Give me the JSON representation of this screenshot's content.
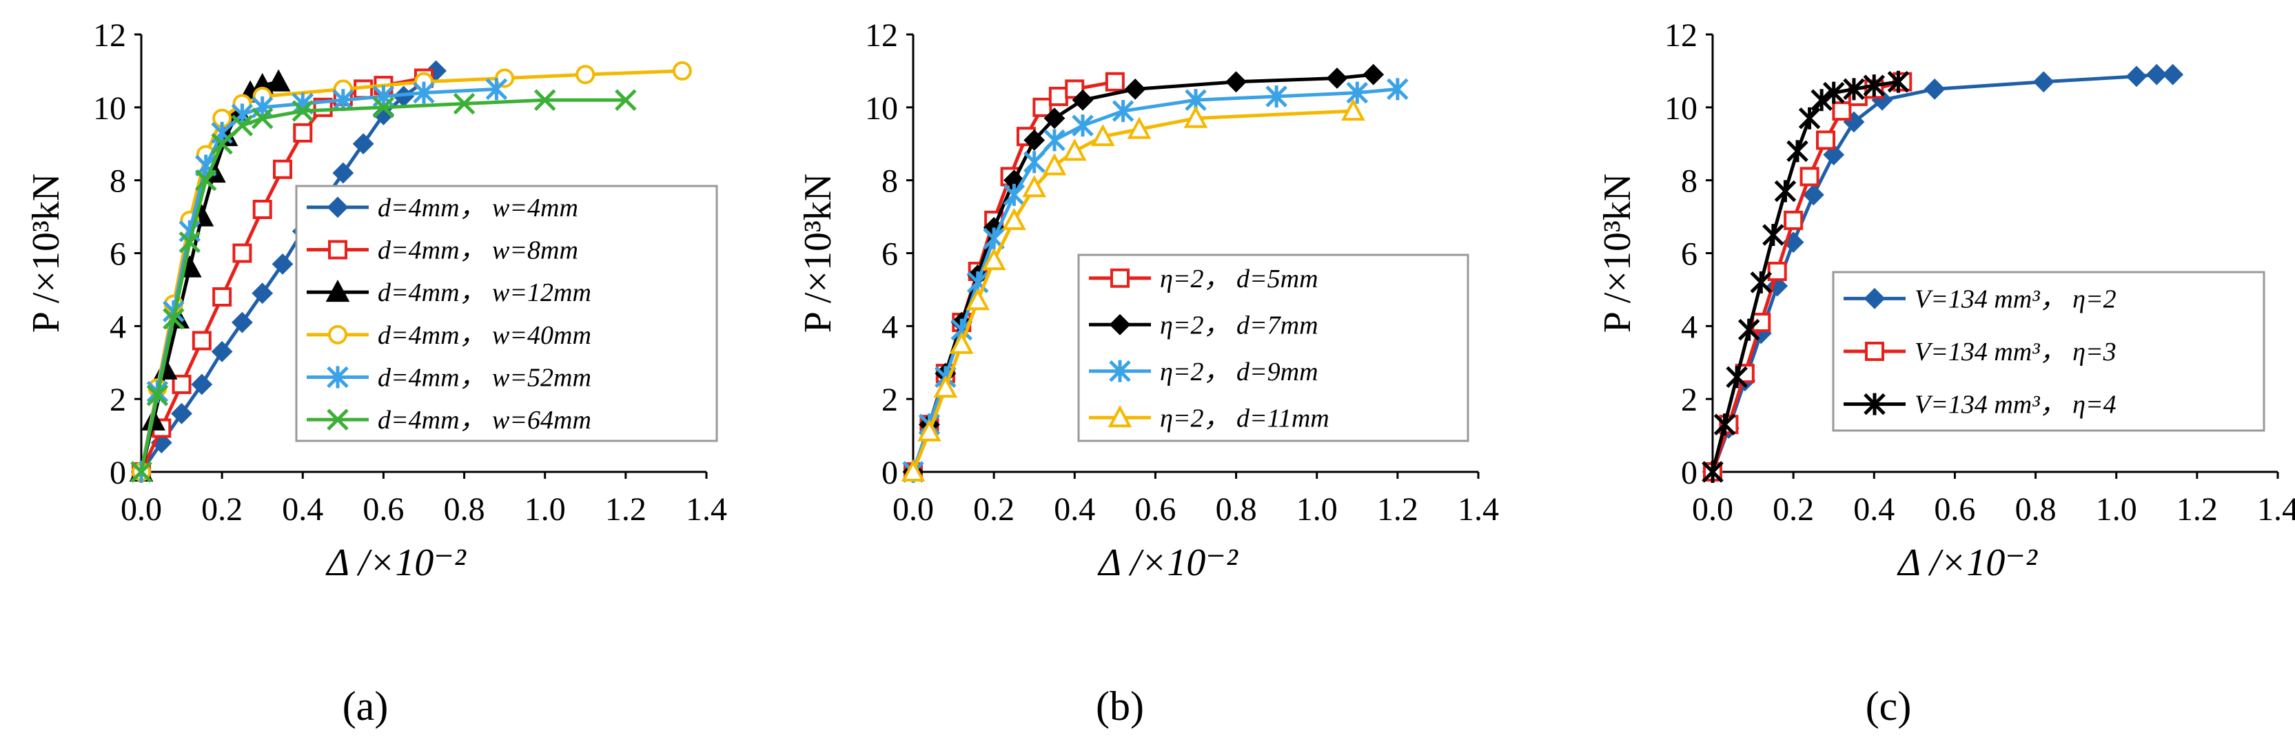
{
  "figure": {
    "panel_captions": [
      "(a)",
      "(b)",
      "(c)"
    ]
  },
  "chart_data": [
    {
      "type": "line",
      "caption": "(a)",
      "ylabel": "P /×10³kN",
      "xlabel": "Δ /×10⁻²",
      "xlim": [
        0,
        1.4
      ],
      "ylim": [
        0,
        12
      ],
      "xticks": [
        "0.0",
        "0.2",
        "0.4",
        "0.6",
        "0.8",
        "1.0",
        "1.2",
        "1.4"
      ],
      "yticks": [
        "0",
        "2",
        "4",
        "6",
        "8",
        "10",
        "12"
      ],
      "grid": false,
      "legend_position": "center-right",
      "series": [
        {
          "name": "d=4mm，  w=4mm",
          "color": "#1f5fa8",
          "marker": "diamond",
          "x": [
            0.0,
            0.05,
            0.1,
            0.15,
            0.2,
            0.25,
            0.3,
            0.35,
            0.4,
            0.45,
            0.5,
            0.55,
            0.6,
            0.65,
            0.7,
            0.73
          ],
          "y": [
            0.0,
            0.8,
            1.6,
            2.4,
            3.3,
            4.1,
            4.9,
            5.7,
            6.6,
            7.4,
            8.2,
            9.0,
            9.8,
            10.3,
            10.7,
            11.0
          ]
        },
        {
          "name": "d=4mm，  w=8mm",
          "color": "#e8201a",
          "marker": "square",
          "x": [
            0.0,
            0.05,
            0.1,
            0.15,
            0.2,
            0.25,
            0.3,
            0.35,
            0.4,
            0.45,
            0.5,
            0.55,
            0.6,
            0.7
          ],
          "y": [
            0.0,
            1.2,
            2.4,
            3.6,
            4.8,
            6.0,
            7.2,
            8.3,
            9.3,
            10.0,
            10.3,
            10.5,
            10.6,
            10.8
          ]
        },
        {
          "name": "d=4mm，  w=12mm",
          "color": "#000000",
          "marker": "triangle",
          "x": [
            0.0,
            0.03,
            0.06,
            0.09,
            0.12,
            0.15,
            0.18,
            0.21,
            0.24,
            0.27,
            0.3,
            0.34
          ],
          "y": [
            0.0,
            1.4,
            2.8,
            4.2,
            5.6,
            7.0,
            8.2,
            9.2,
            9.9,
            10.4,
            10.6,
            10.7
          ]
        },
        {
          "name": "d=4mm，  w=40mm",
          "color": "#f5b800",
          "marker": "circle",
          "x": [
            0.0,
            0.04,
            0.08,
            0.12,
            0.16,
            0.2,
            0.25,
            0.3,
            0.5,
            0.7,
            0.9,
            1.1,
            1.34
          ],
          "y": [
            0.0,
            2.3,
            4.6,
            6.9,
            8.7,
            9.7,
            10.1,
            10.3,
            10.5,
            10.7,
            10.8,
            10.9,
            11.0
          ]
        },
        {
          "name": "d=4mm，  w=52mm",
          "color": "#3aa2e6",
          "marker": "asterisk",
          "x": [
            0.0,
            0.04,
            0.08,
            0.12,
            0.16,
            0.2,
            0.25,
            0.3,
            0.4,
            0.5,
            0.6,
            0.7,
            0.88
          ],
          "y": [
            0.0,
            2.2,
            4.4,
            6.6,
            8.4,
            9.3,
            9.8,
            10.0,
            10.1,
            10.2,
            10.3,
            10.4,
            10.5
          ]
        },
        {
          "name": "d=4mm，  w=64mm",
          "color": "#3cb035",
          "marker": "cross",
          "x": [
            0.0,
            0.04,
            0.08,
            0.12,
            0.16,
            0.2,
            0.25,
            0.3,
            0.4,
            0.6,
            0.8,
            1.0,
            1.2
          ],
          "y": [
            0.0,
            2.1,
            4.2,
            6.3,
            8.0,
            9.0,
            9.5,
            9.7,
            9.9,
            10.0,
            10.1,
            10.2,
            10.2
          ]
        }
      ]
    },
    {
      "type": "line",
      "caption": "(b)",
      "ylabel": "P /×10³kN",
      "xlabel": "Δ /×10⁻²",
      "xlim": [
        0,
        1.4
      ],
      "ylim": [
        0,
        12
      ],
      "xticks": [
        "0.0",
        "0.2",
        "0.4",
        "0.6",
        "0.8",
        "1.0",
        "1.2",
        "1.4"
      ],
      "yticks": [
        "0",
        "2",
        "4",
        "6",
        "8",
        "10",
        "12"
      ],
      "grid": false,
      "legend_position": "center-right",
      "series": [
        {
          "name": "η=2，  d=5mm",
          "color": "#e8201a",
          "marker": "square",
          "x": [
            0.0,
            0.04,
            0.08,
            0.12,
            0.16,
            0.2,
            0.24,
            0.28,
            0.32,
            0.36,
            0.4,
            0.5
          ],
          "y": [
            0.0,
            1.3,
            2.7,
            4.1,
            5.5,
            6.9,
            8.1,
            9.2,
            10.0,
            10.3,
            10.5,
            10.7
          ]
        },
        {
          "name": "η=2，  d=7mm",
          "color": "#000000",
          "marker": "diamond",
          "x": [
            0.0,
            0.04,
            0.08,
            0.12,
            0.16,
            0.2,
            0.25,
            0.3,
            0.35,
            0.42,
            0.55,
            0.8,
            1.05,
            1.14
          ],
          "y": [
            0.0,
            1.3,
            2.7,
            4.1,
            5.4,
            6.7,
            8.0,
            9.1,
            9.7,
            10.2,
            10.5,
            10.7,
            10.8,
            10.9
          ]
        },
        {
          "name": "η=2，  d=9mm",
          "color": "#3aa2e6",
          "marker": "asterisk",
          "x": [
            0.0,
            0.04,
            0.08,
            0.12,
            0.16,
            0.2,
            0.25,
            0.3,
            0.35,
            0.42,
            0.52,
            0.7,
            0.9,
            1.1,
            1.2
          ],
          "y": [
            0.0,
            1.3,
            2.6,
            3.9,
            5.2,
            6.4,
            7.6,
            8.5,
            9.1,
            9.5,
            9.9,
            10.2,
            10.3,
            10.4,
            10.5
          ]
        },
        {
          "name": "η=2，  d=11mm",
          "color": "#f5b800",
          "marker": "triangle",
          "x": [
            0.0,
            0.04,
            0.08,
            0.12,
            0.16,
            0.2,
            0.25,
            0.3,
            0.35,
            0.4,
            0.47,
            0.56,
            0.7,
            1.09
          ],
          "y": [
            0.0,
            1.1,
            2.3,
            3.5,
            4.7,
            5.8,
            6.9,
            7.8,
            8.4,
            8.8,
            9.2,
            9.4,
            9.7,
            9.9
          ]
        }
      ]
    },
    {
      "type": "line",
      "caption": "(c)",
      "ylabel": "P /×10³kN",
      "xlabel": "Δ /×10⁻²",
      "xlim": [
        0,
        1.4
      ],
      "ylim": [
        0,
        12
      ],
      "xticks": [
        "0.0",
        "0.2",
        "0.4",
        "0.6",
        "0.8",
        "1.0",
        "1.2",
        "1.4"
      ],
      "yticks": [
        "0",
        "2",
        "4",
        "6",
        "8",
        "10",
        "12"
      ],
      "grid": false,
      "legend_position": "center-right",
      "series": [
        {
          "name": "V=134 mm³，  η=2",
          "color": "#1f5fa8",
          "marker": "diamond",
          "x": [
            0.0,
            0.04,
            0.08,
            0.12,
            0.16,
            0.2,
            0.25,
            0.3,
            0.35,
            0.42,
            0.55,
            0.82,
            1.05,
            1.1,
            1.14
          ],
          "y": [
            0.0,
            1.2,
            2.5,
            3.8,
            5.1,
            6.3,
            7.6,
            8.7,
            9.6,
            10.2,
            10.5,
            10.7,
            10.85,
            10.9,
            10.9
          ]
        },
        {
          "name": "V=134 mm³，  η=3",
          "color": "#e8201a",
          "marker": "square",
          "x": [
            0.0,
            0.04,
            0.08,
            0.12,
            0.16,
            0.2,
            0.24,
            0.28,
            0.32,
            0.36,
            0.4,
            0.47
          ],
          "y": [
            0.0,
            1.3,
            2.7,
            4.1,
            5.5,
            6.9,
            8.1,
            9.1,
            9.9,
            10.3,
            10.5,
            10.7
          ]
        },
        {
          "name": "V=134 mm³，  η=4",
          "color": "#000000",
          "marker": "asterisk",
          "x": [
            0.0,
            0.03,
            0.06,
            0.09,
            0.12,
            0.15,
            0.18,
            0.21,
            0.24,
            0.27,
            0.3,
            0.35,
            0.4,
            0.46
          ],
          "y": [
            0.0,
            1.3,
            2.6,
            3.9,
            5.2,
            6.5,
            7.7,
            8.8,
            9.7,
            10.2,
            10.4,
            10.5,
            10.6,
            10.7
          ]
        }
      ]
    }
  ]
}
